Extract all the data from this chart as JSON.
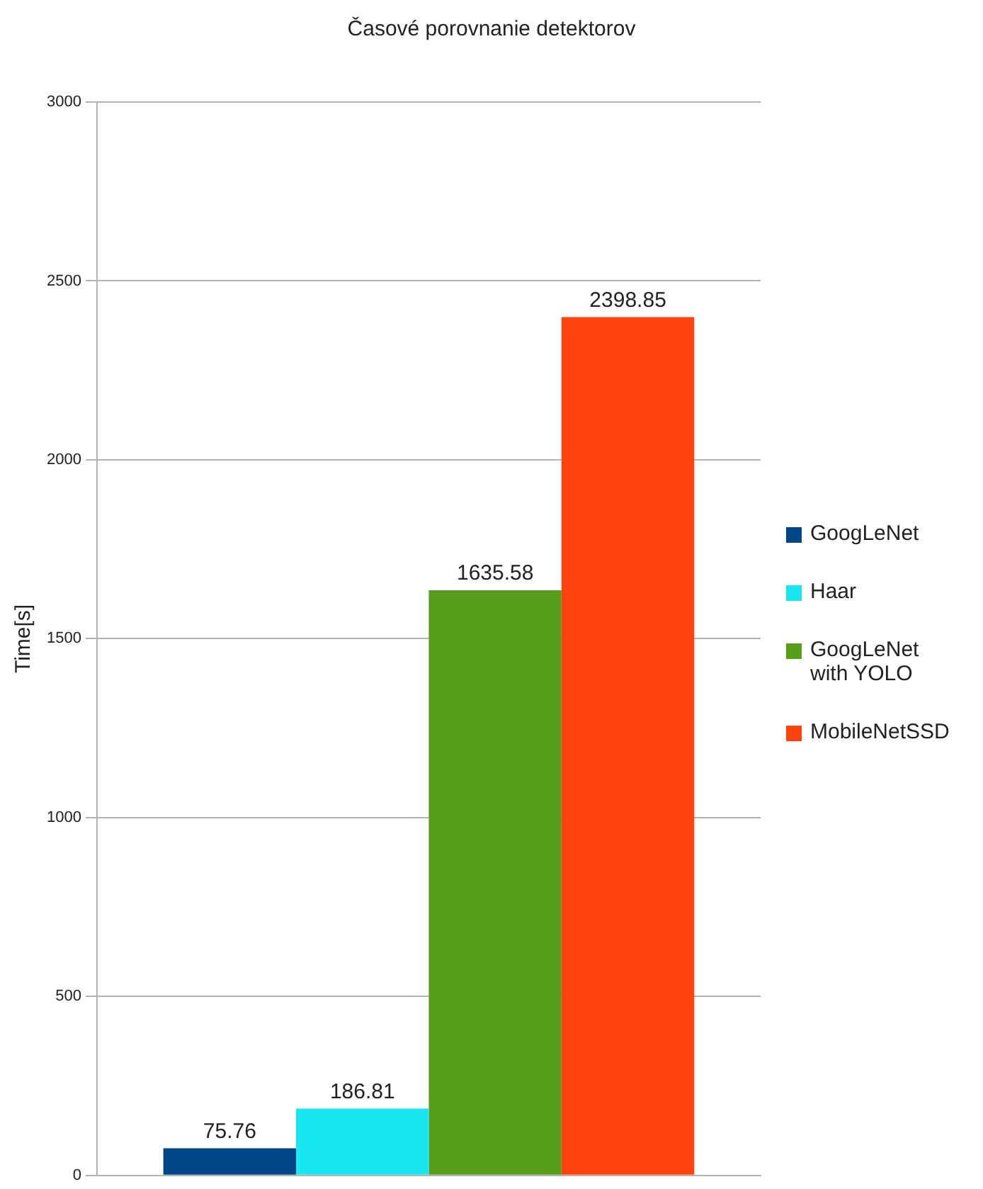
{
  "chart_data": {
    "type": "bar",
    "title": "Časové porovnanie detektorov",
    "ylabel": "Time[s]",
    "categories": [
      null
    ],
    "series": [
      {
        "name": "GoogLeNet",
        "color": "#004586",
        "values": [
          75.76
        ]
      },
      {
        "name": "Haar",
        "color": "#1ae6f2",
        "values": [
          186.81
        ]
      },
      {
        "name": "GoogLeNet with YOLO",
        "color": "#579d1c",
        "values": [
          1635.58
        ]
      },
      {
        "name": "MobileNetSSD",
        "color": "#ff420e",
        "values": [
          2398.85
        ]
      }
    ],
    "ylim": [
      0,
      3000
    ],
    "yticks": [
      0,
      500,
      1000,
      1500,
      2000,
      2500,
      3000
    ],
    "grid": "y",
    "legend": "right",
    "data_labels": true
  }
}
